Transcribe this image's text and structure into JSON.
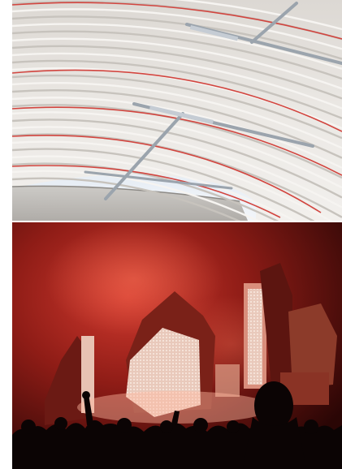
{
  "photos": [
    {
      "name": "arched-ceiling-photo",
      "subject": "curved-roof-interior"
    },
    {
      "name": "concert-stage-photo",
      "subject": "festival-stage-red-smoke"
    }
  ],
  "colors": {
    "ceiling_base": "#e6e3df",
    "ceiling_stripe": "#d2453f",
    "ceiling_shadow": "#b7b4b0",
    "beam": "#9ba4ad",
    "sky": "#f7f9fb",
    "concert_smoke": "#b3261e",
    "concert_dark": "#3a0807",
    "stage_screen": "#f0d7c9",
    "crowd": "#0b0404"
  }
}
